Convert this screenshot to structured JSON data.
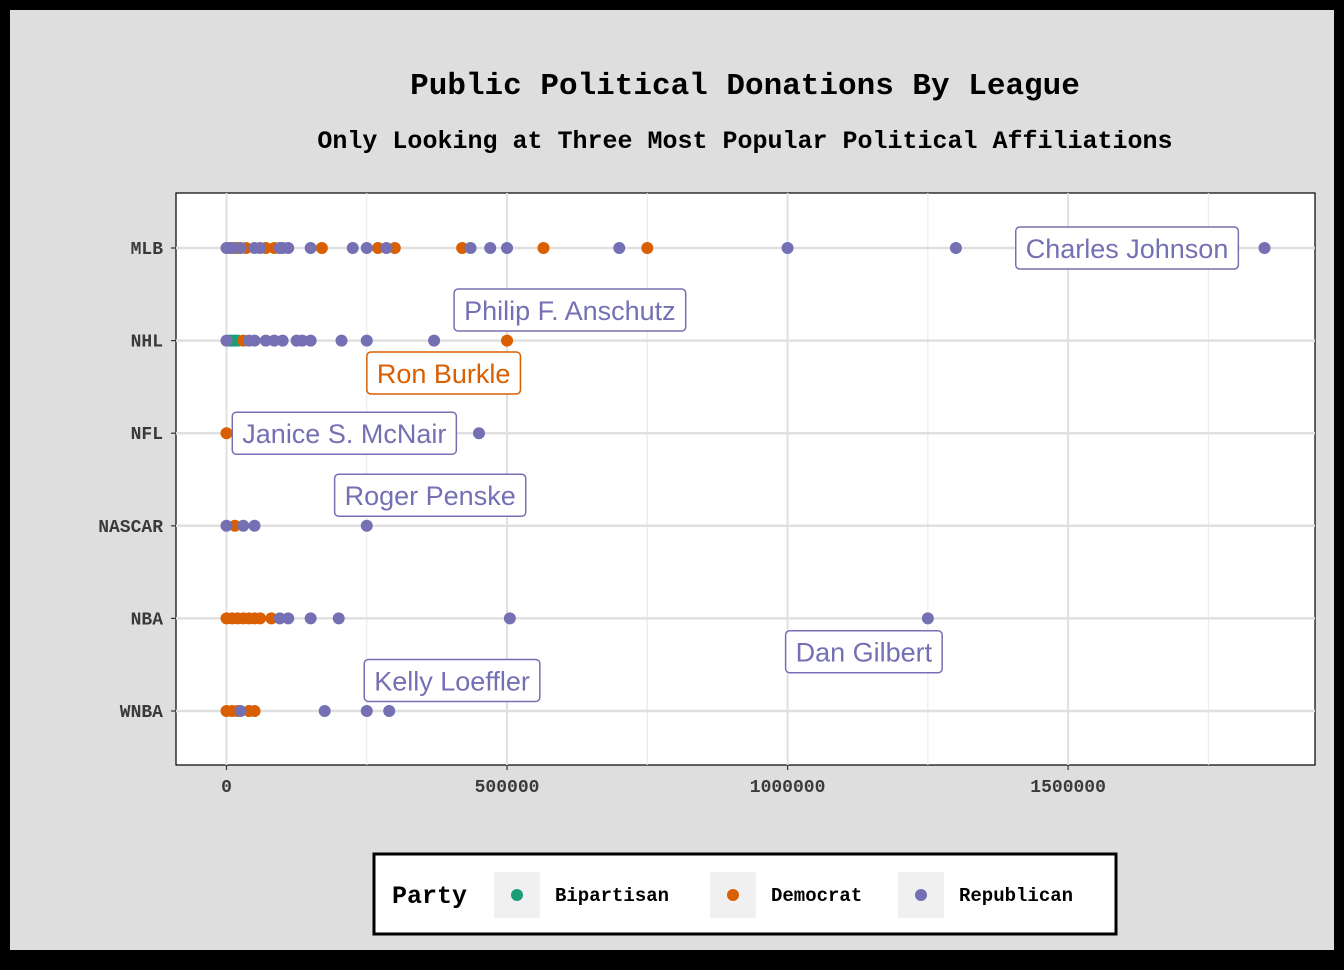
{
  "chart_data": {
    "type": "scatter",
    "title": "Public Political Donations By League",
    "subtitle": "Only Looking at Three Most Popular Political Affiliations",
    "xlabel": "",
    "ylabel": "",
    "xlim": [
      -90000,
      1940000
    ],
    "xticks": [
      0,
      500000,
      1000000,
      1500000
    ],
    "x_tick_labels": [
      "0",
      "500000",
      "1000000",
      "1500000"
    ],
    "categories": [
      "MLB",
      "NHL",
      "NFL",
      "NASCAR",
      "NBA",
      "WNBA"
    ],
    "grid": true,
    "legend_position": "bottom",
    "legend_title": "Party",
    "colors": {
      "Bipartisan": "#1b9e77",
      "Democrat": "#d95f02",
      "Republican": "#7570b3"
    },
    "series": [
      {
        "name": "Bipartisan",
        "points": [
          {
            "league": "MLB",
            "x": 15000
          },
          {
            "league": "NHL",
            "x": 5000
          },
          {
            "league": "NHL",
            "x": 10000
          },
          {
            "league": "NHL",
            "x": 15000
          },
          {
            "league": "NHL",
            "x": 20000
          }
        ]
      },
      {
        "name": "Democrat",
        "points": [
          {
            "league": "MLB",
            "x": 5000
          },
          {
            "league": "MLB",
            "x": 20000
          },
          {
            "league": "MLB",
            "x": 35000
          },
          {
            "league": "MLB",
            "x": 70000
          },
          {
            "league": "MLB",
            "x": 85000
          },
          {
            "league": "MLB",
            "x": 170000
          },
          {
            "league": "MLB",
            "x": 270000
          },
          {
            "league": "MLB",
            "x": 300000
          },
          {
            "league": "MLB",
            "x": 420000
          },
          {
            "league": "MLB",
            "x": 565000
          },
          {
            "league": "MLB",
            "x": 750000
          },
          {
            "league": "NHL",
            "x": 30000
          },
          {
            "league": "NHL",
            "x": 500000
          },
          {
            "league": "NFL",
            "x": 0
          },
          {
            "league": "NASCAR",
            "x": 15000
          },
          {
            "league": "NBA",
            "x": 0
          },
          {
            "league": "NBA",
            "x": 10000
          },
          {
            "league": "NBA",
            "x": 20000
          },
          {
            "league": "NBA",
            "x": 30000
          },
          {
            "league": "NBA",
            "x": 40000
          },
          {
            "league": "NBA",
            "x": 50000
          },
          {
            "league": "NBA",
            "x": 60000
          },
          {
            "league": "NBA",
            "x": 80000
          },
          {
            "league": "WNBA",
            "x": 0
          },
          {
            "league": "WNBA",
            "x": 10000
          },
          {
            "league": "WNBA",
            "x": 20000
          },
          {
            "league": "WNBA",
            "x": 40000
          },
          {
            "league": "WNBA",
            "x": 50000
          }
        ]
      },
      {
        "name": "Republican",
        "points": [
          {
            "league": "MLB",
            "x": 0
          },
          {
            "league": "MLB",
            "x": 10000
          },
          {
            "league": "MLB",
            "x": 25000
          },
          {
            "league": "MLB",
            "x": 50000
          },
          {
            "league": "MLB",
            "x": 60000
          },
          {
            "league": "MLB",
            "x": 95000
          },
          {
            "league": "MLB",
            "x": 100000
          },
          {
            "league": "MLB",
            "x": 110000
          },
          {
            "league": "MLB",
            "x": 150000
          },
          {
            "league": "MLB",
            "x": 225000
          },
          {
            "league": "MLB",
            "x": 250000
          },
          {
            "league": "MLB",
            "x": 285000
          },
          {
            "league": "MLB",
            "x": 435000
          },
          {
            "league": "MLB",
            "x": 470000
          },
          {
            "league": "MLB",
            "x": 500000
          },
          {
            "league": "MLB",
            "x": 700000
          },
          {
            "league": "MLB",
            "x": 1000000
          },
          {
            "league": "MLB",
            "x": 1300000
          },
          {
            "league": "MLB",
            "x": 1850000
          },
          {
            "league": "NHL",
            "x": 0
          },
          {
            "league": "NHL",
            "x": 40000
          },
          {
            "league": "NHL",
            "x": 50000
          },
          {
            "league": "NHL",
            "x": 70000
          },
          {
            "league": "NHL",
            "x": 85000
          },
          {
            "league": "NHL",
            "x": 100000
          },
          {
            "league": "NHL",
            "x": 125000
          },
          {
            "league": "NHL",
            "x": 135000
          },
          {
            "league": "NHL",
            "x": 150000
          },
          {
            "league": "NHL",
            "x": 205000
          },
          {
            "league": "NHL",
            "x": 250000
          },
          {
            "league": "NHL",
            "x": 370000
          },
          {
            "league": "NFL",
            "x": 450000
          },
          {
            "league": "NASCAR",
            "x": 0
          },
          {
            "league": "NASCAR",
            "x": 30000
          },
          {
            "league": "NASCAR",
            "x": 50000
          },
          {
            "league": "NASCAR",
            "x": 250000
          },
          {
            "league": "NBA",
            "x": 95000
          },
          {
            "league": "NBA",
            "x": 110000
          },
          {
            "league": "NBA",
            "x": 150000
          },
          {
            "league": "NBA",
            "x": 200000
          },
          {
            "league": "NBA",
            "x": 505000
          },
          {
            "league": "NBA",
            "x": 1250000
          },
          {
            "league": "WNBA",
            "x": 25000
          },
          {
            "league": "WNBA",
            "x": 175000
          },
          {
            "league": "WNBA",
            "x": 250000
          },
          {
            "league": "WNBA",
            "x": 290000
          }
        ]
      }
    ],
    "annotations": [
      {
        "text": "Charles Johnson",
        "party": "Republican",
        "league": "MLB",
        "x": 1850000,
        "anchor_x": 1605000,
        "anchor_offset": 0
      },
      {
        "text": "Philip F. Anschutz",
        "party": "Republican",
        "league": "NHL",
        "x": 370000,
        "anchor_x": 612000,
        "anchor_offset": -0.33
      },
      {
        "text": "Ron Burkle",
        "party": "Democrat",
        "league": "NHL",
        "x": 500000,
        "anchor_x": 387000,
        "anchor_offset": 0.35
      },
      {
        "text": "Janice S. McNair",
        "party": "Republican",
        "league": "NFL",
        "x": 450000,
        "anchor_x": 210000,
        "anchor_offset": 0
      },
      {
        "text": "Roger Penske",
        "party": "Republican",
        "league": "NASCAR",
        "x": 250000,
        "anchor_x": 363000,
        "anchor_offset": -0.33
      },
      {
        "text": "Dan Gilbert",
        "party": "Republican",
        "league": "NBA",
        "x": 1250000,
        "anchor_x": 1136000,
        "anchor_offset": 0.36
      },
      {
        "text": "Kelly Loeffler",
        "party": "Republican",
        "league": "WNBA",
        "x": 250000,
        "anchor_x": 402000,
        "anchor_offset": -0.33
      }
    ]
  }
}
